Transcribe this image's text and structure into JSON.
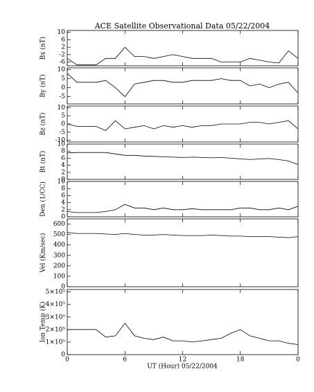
{
  "title": "ACE Satellite Observational Data   05/22/2004",
  "xlabel": "UT (Hour)   05/22/2004",
  "xlim": [
    0,
    24
  ],
  "xticks": [
    0,
    6,
    12,
    18,
    {
      "value": 24,
      "label": "0"
    }
  ],
  "x": [
    0,
    1,
    2,
    3,
    4,
    5,
    6,
    7,
    8,
    9,
    10,
    11,
    12,
    13,
    14,
    15,
    16,
    17,
    18,
    19,
    20,
    21,
    22,
    23,
    24
  ],
  "chart_data": [
    {
      "type": "line",
      "ylabel": "Bx (nT)",
      "ylim": [
        -8,
        11
      ],
      "yticks": [
        -6,
        -2,
        2,
        6,
        10
      ],
      "values": [
        -4,
        -7.5,
        -7.5,
        -7.5,
        -4,
        -4,
        2,
        -3,
        -3,
        -4,
        -3,
        -2,
        -3,
        -4,
        -4,
        -4,
        -6,
        -6,
        -6,
        -4,
        -5,
        -6,
        -6.5,
        0,
        -4
      ]
    },
    {
      "type": "line",
      "ylabel": "By (nT)",
      "ylim": [
        -9,
        11
      ],
      "yticks": [
        -5,
        0,
        5,
        10
      ],
      "values": [
        8,
        3,
        3,
        3,
        4,
        0,
        -5,
        2,
        3,
        4,
        4,
        3,
        3,
        4,
        4,
        4,
        5,
        4,
        4,
        1,
        2,
        0,
        2,
        3,
        -3
      ]
    },
    {
      "type": "line",
      "ylabel": "Bz (nT)",
      "ylim": [
        -11,
        11
      ],
      "yticks": [
        -10,
        -5,
        0,
        5,
        10
      ],
      "values": [
        0,
        -1.5,
        -1.5,
        -1.5,
        -4,
        2,
        -3,
        -2,
        -1,
        -3,
        -1,
        -2,
        -1,
        -2,
        -1,
        -1,
        0,
        0,
        0,
        1,
        1,
        0,
        1,
        2,
        -3
      ]
    },
    {
      "type": "line",
      "ylabel": "Bt (nT)",
      "ylim": [
        0,
        10
      ],
      "yticks": [
        0,
        2,
        4,
        6,
        8,
        10
      ],
      "values": [
        7.5,
        7.6,
        7.6,
        7.6,
        7.6,
        7.2,
        6.8,
        6.8,
        6.6,
        6.5,
        6.4,
        6.3,
        6.2,
        6.3,
        6.2,
        6.1,
        6.2,
        6.0,
        5.8,
        5.6,
        5.8,
        5.9,
        5.6,
        5.2,
        4.2
      ]
    },
    {
      "type": "line",
      "ylabel": "Den (1/CC)",
      "ylim": [
        0,
        10
      ],
      "yticks": [
        0,
        2,
        4,
        6,
        8,
        10
      ],
      "values": [
        1.5,
        1.2,
        1.2,
        1.2,
        1.5,
        2,
        3.5,
        2.5,
        2.5,
        2,
        2.5,
        2,
        2,
        2.3,
        2,
        2,
        2,
        2,
        2.5,
        2.5,
        2,
        2,
        2.5,
        2,
        3
      ]
    },
    {
      "type": "line",
      "ylabel": "Vel (Km/sec)",
      "ylim": [
        0,
        650
      ],
      "yticks": [
        0,
        100,
        200,
        300,
        400,
        500,
        600
      ],
      "values": [
        520,
        510,
        510,
        510,
        505,
        500,
        510,
        500,
        495,
        495,
        500,
        495,
        490,
        490,
        490,
        495,
        490,
        485,
        485,
        480,
        480,
        480,
        475,
        470,
        480
      ]
    },
    {
      "type": "line",
      "ylabel": "Ion Temp (K)",
      "ylim": [
        0,
        520000
      ],
      "yticks": [
        0,
        {
          "value": 100000,
          "label": "1×10⁵"
        },
        {
          "value": 200000,
          "label": "2×10⁵"
        },
        {
          "value": 300000,
          "label": "3×10⁵"
        },
        {
          "value": 400000,
          "label": "4×10⁵"
        },
        {
          "value": 500000,
          "label": "5×10⁵"
        }
      ],
      "values": [
        200000,
        200000,
        200000,
        200000,
        140000,
        150000,
        250000,
        150000,
        130000,
        120000,
        140000,
        110000,
        110000,
        100000,
        110000,
        120000,
        130000,
        170000,
        200000,
        150000,
        130000,
        110000,
        110000,
        90000,
        80000
      ]
    }
  ]
}
